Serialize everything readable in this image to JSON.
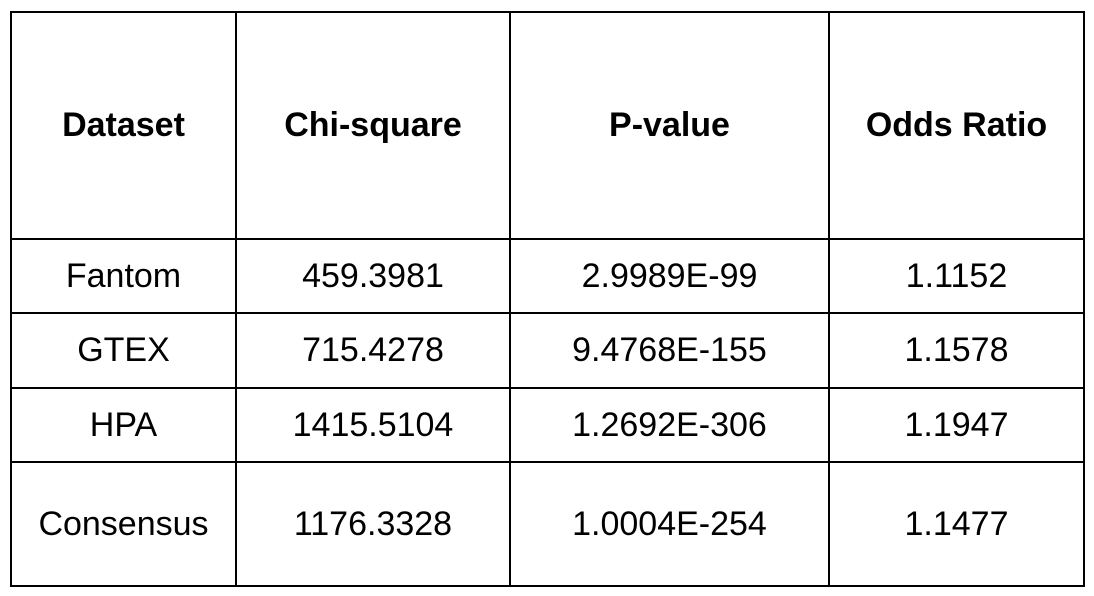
{
  "table": {
    "headers": [
      "Dataset",
      "Chi-square",
      "P-value",
      "Odds Ratio"
    ],
    "rows": [
      [
        "Fantom",
        "459.3981",
        "2.9989E-99",
        "1.1152"
      ],
      [
        "GTEX",
        "715.4278",
        "9.4768E-155",
        "1.1578"
      ],
      [
        "HPA",
        "1415.5104",
        "1.2692E-306",
        "1.1947"
      ],
      [
        "Consensus",
        "1176.3328",
        "1.0004E-254",
        "1.1477"
      ]
    ]
  }
}
